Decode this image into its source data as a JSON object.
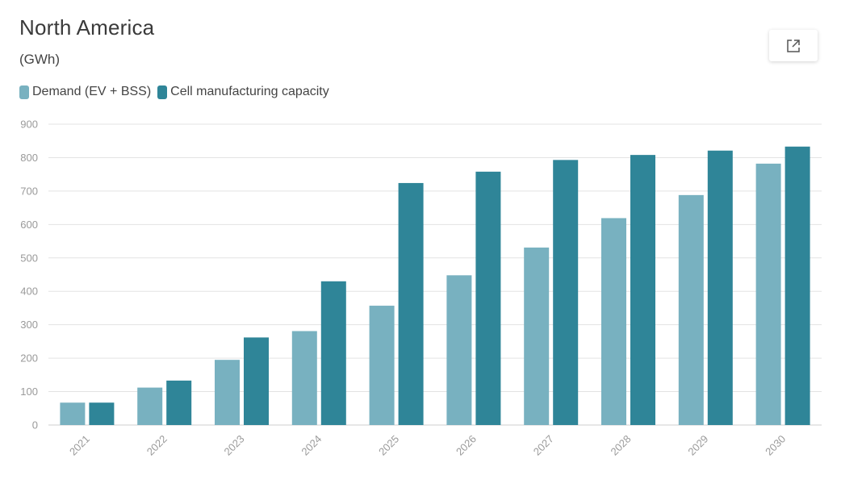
{
  "header": {
    "title": "North America",
    "subtitle": "(GWh)"
  },
  "legend": {
    "items": [
      {
        "label": "Demand (EV + BSS)",
        "color": "#78b1c0"
      },
      {
        "label": "Cell manufacturing capacity",
        "color": "#2f8598"
      }
    ]
  },
  "export_icon": "open-external-icon",
  "chart_data": {
    "type": "bar",
    "title": "North America",
    "subtitle": "(GWh)",
    "xlabel": "",
    "ylabel": "",
    "ylim": [
      0,
      900
    ],
    "yticks": [
      0,
      100,
      200,
      300,
      400,
      500,
      600,
      700,
      800,
      900
    ],
    "grid": true,
    "legend_position": "top-left",
    "categories": [
      "2021",
      "2022",
      "2023",
      "2024",
      "2025",
      "2026",
      "2027",
      "2028",
      "2029",
      "2030"
    ],
    "series": [
      {
        "name": "Demand (EV + BSS)",
        "color": "#78b1c0",
        "values": [
          67,
          112,
          195,
          281,
          357,
          448,
          531,
          619,
          688,
          782
        ]
      },
      {
        "name": "Cell manufacturing capacity",
        "color": "#2f8598",
        "values": [
          67,
          133,
          262,
          430,
          724,
          758,
          793,
          808,
          821,
          833
        ]
      }
    ]
  }
}
